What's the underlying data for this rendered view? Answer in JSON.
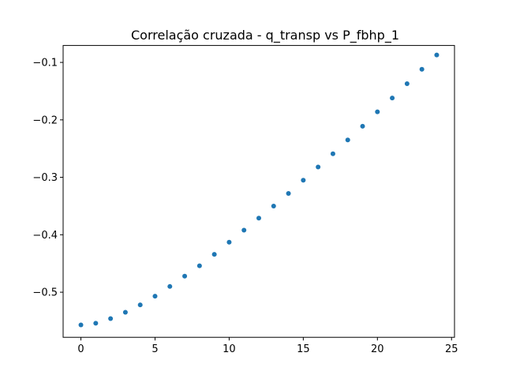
{
  "chart_data": {
    "type": "scatter",
    "title": "Correlação cruzada - q_transp vs P_fbhp_1",
    "xlabel": "",
    "ylabel": "",
    "xlim": [
      -1.2,
      25.2
    ],
    "ylim": [
      -0.5785,
      -0.0705
    ],
    "grid": false,
    "legend": "none",
    "marker_color": "#1f77b4",
    "x_ticks": [
      0,
      5,
      10,
      15,
      20,
      25
    ],
    "x_tick_labels": [
      "0",
      "5",
      "10",
      "15",
      "20",
      "25"
    ],
    "y_ticks": [
      -0.5,
      -0.4,
      -0.3,
      -0.2,
      -0.1
    ],
    "y_tick_labels": [
      "−0.5",
      "−0.4",
      "−0.3",
      "−0.2",
      "−0.1"
    ],
    "series": [
      {
        "x": [
          0,
          1,
          2,
          3,
          4,
          5,
          6,
          7,
          8,
          9,
          10,
          11,
          12,
          13,
          14,
          15,
          16,
          17,
          18,
          19,
          20,
          21,
          22,
          23,
          24
        ],
        "y": [
          -0.557,
          -0.554,
          -0.546,
          -0.535,
          -0.522,
          -0.507,
          -0.49,
          -0.472,
          -0.454,
          -0.434,
          -0.413,
          -0.392,
          -0.371,
          -0.35,
          -0.328,
          -0.305,
          -0.282,
          -0.259,
          -0.235,
          -0.211,
          -0.186,
          -0.162,
          -0.137,
          -0.112,
          -0.087
        ]
      }
    ]
  }
}
